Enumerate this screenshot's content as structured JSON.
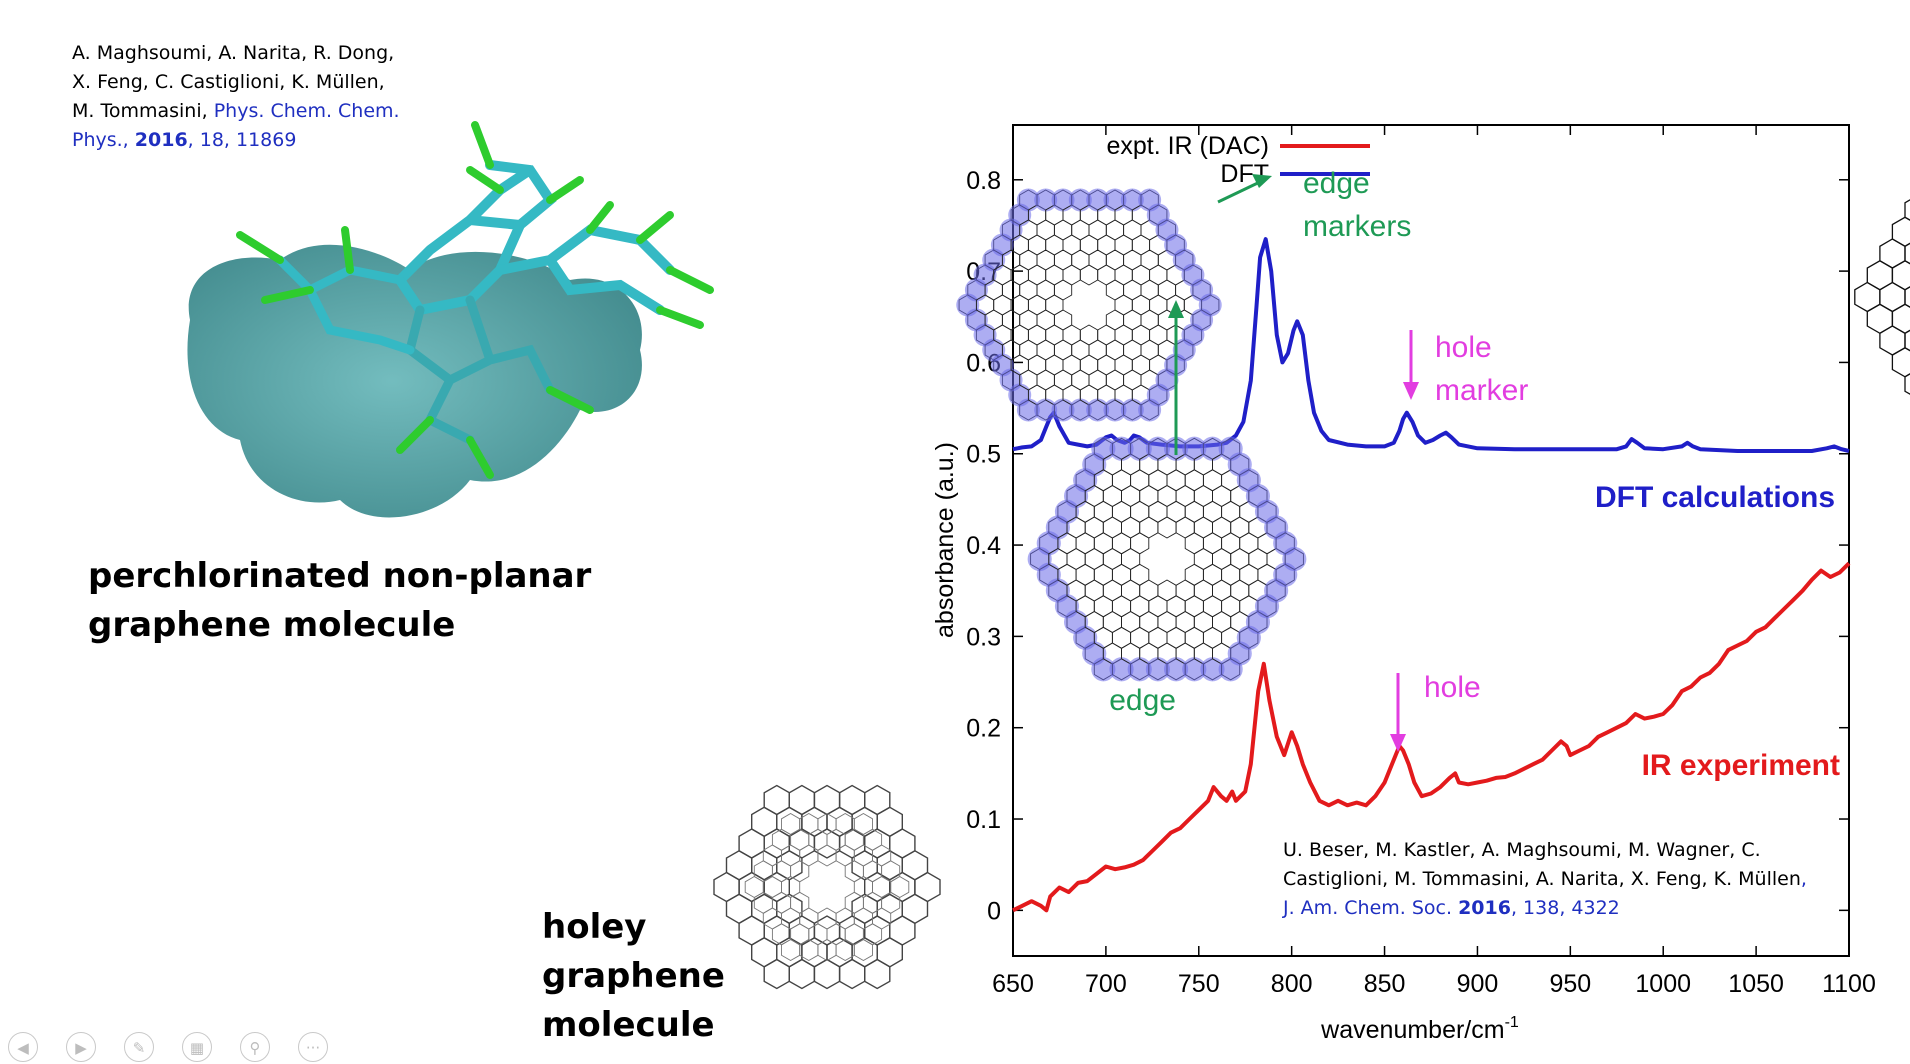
{
  "references": {
    "top": {
      "authors_line1": "A. Maghsoumi, A. Narita, R. Dong,",
      "authors_line2": "X. Feng, C. Castiglioni, K. Müllen,",
      "authors_line3": "M. Tommasini,",
      "journal_a": "Phys. Chem. Chem.",
      "journal_b": "Phys.,",
      "year": "2016",
      "vol_page": ", 18, 11869"
    },
    "bottom": {
      "authors_line1": "U. Beser, M. Kastler, A. Maghsoumi, M. Wagner, C.",
      "authors_line2": "Castiglioni, M. Tommasini, A. Narita, X. Feng, K. Müllen",
      "comma": ",",
      "journal": "J. Am. Chem. Soc.",
      "year": "2016",
      "vol_page": ", 138, 4322"
    }
  },
  "captions": {
    "perchlorinated_line1": "perchlorinated non-planar",
    "perchlorinated_line2": "graphene molecule",
    "holey_line1": "holey",
    "holey_line2": "graphene",
    "holey_line3": "molecule"
  },
  "colors": {
    "experiment": "#e31a1c",
    "dft": "#1f1fc8",
    "edge_annotation": "#1e9a55",
    "hole_annotation": "#e23de0",
    "molecule_teal": "#35b9c4",
    "chlorine_green": "#2ecc2e",
    "surface": "#3d8f92"
  },
  "slide_controls": [
    "prev-icon",
    "next-icon",
    "pen-icon",
    "slides-icon",
    "zoom-icon",
    "more-icon"
  ],
  "chart_data": {
    "type": "line",
    "xlabel": "wavenumber/cm",
    "xlabel_superscript": "-1",
    "ylabel": "absorbance (a.u.)",
    "xlim": [
      650,
      1100
    ],
    "ylim": [
      -0.05,
      0.86
    ],
    "x_ticks": [
      650,
      700,
      750,
      800,
      850,
      900,
      950,
      1000,
      1050,
      1100
    ],
    "y_ticks": [
      0,
      0.1,
      0.2,
      0.3,
      0.4,
      0.5,
      0.6,
      0.7,
      0.8
    ],
    "y_tick_labels": [
      "0",
      "0.1",
      "0.2",
      "0.3",
      "0.4",
      "0.5",
      "0.6",
      "0.7",
      "0.8"
    ],
    "legend": {
      "position": "top-left",
      "entries": [
        "expt. IR (DAC)",
        "DFT"
      ]
    },
    "series": [
      {
        "name": "expt. IR (DAC)",
        "color": "#e31a1c",
        "x": [
          650,
          655,
          660,
          665,
          668,
          670,
          675,
          680,
          685,
          690,
          695,
          700,
          705,
          710,
          715,
          720,
          725,
          730,
          735,
          740,
          745,
          750,
          755,
          758,
          762,
          765,
          768,
          770,
          775,
          778,
          782,
          785,
          788,
          792,
          796,
          800,
          803,
          806,
          810,
          815,
          820,
          825,
          830,
          835,
          840,
          845,
          850,
          855,
          858,
          860,
          863,
          866,
          870,
          875,
          880,
          885,
          888,
          890,
          895,
          900,
          905,
          910,
          915,
          920,
          925,
          930,
          935,
          940,
          945,
          948,
          950,
          955,
          960,
          965,
          970,
          975,
          980,
          985,
          990,
          995,
          1000,
          1005,
          1010,
          1015,
          1020,
          1025,
          1030,
          1035,
          1040,
          1045,
          1050,
          1055,
          1060,
          1065,
          1070,
          1075,
          1080,
          1085,
          1090,
          1095,
          1100
        ],
        "y": [
          0.0,
          0.005,
          0.01,
          0.005,
          0.0,
          0.015,
          0.025,
          0.02,
          0.03,
          0.032,
          0.04,
          0.048,
          0.045,
          0.047,
          0.05,
          0.055,
          0.065,
          0.075,
          0.085,
          0.09,
          0.1,
          0.11,
          0.12,
          0.135,
          0.125,
          0.12,
          0.13,
          0.12,
          0.13,
          0.16,
          0.24,
          0.27,
          0.23,
          0.19,
          0.17,
          0.195,
          0.18,
          0.16,
          0.14,
          0.12,
          0.115,
          0.12,
          0.115,
          0.118,
          0.115,
          0.125,
          0.14,
          0.165,
          0.18,
          0.175,
          0.16,
          0.14,
          0.125,
          0.128,
          0.135,
          0.145,
          0.15,
          0.14,
          0.138,
          0.14,
          0.142,
          0.145,
          0.146,
          0.15,
          0.155,
          0.16,
          0.165,
          0.175,
          0.185,
          0.18,
          0.17,
          0.175,
          0.18,
          0.19,
          0.195,
          0.2,
          0.205,
          0.215,
          0.21,
          0.212,
          0.215,
          0.225,
          0.24,
          0.245,
          0.255,
          0.26,
          0.27,
          0.285,
          0.29,
          0.295,
          0.305,
          0.31,
          0.32,
          0.33,
          0.34,
          0.35,
          0.362,
          0.372,
          0.365,
          0.37,
          0.38
        ]
      },
      {
        "name": "DFT",
        "color": "#1f1fc8",
        "x": [
          650,
          655,
          660,
          665,
          668,
          670,
          672,
          675,
          680,
          685,
          690,
          695,
          700,
          703,
          706,
          710,
          713,
          715,
          718,
          722,
          730,
          740,
          750,
          760,
          765,
          770,
          774,
          778,
          781,
          783,
          786,
          789,
          792,
          795,
          798,
          801,
          803,
          806,
          809,
          812,
          816,
          820,
          830,
          840,
          850,
          855,
          858,
          860,
          862,
          865,
          868,
          872,
          876,
          880,
          883,
          886,
          890,
          900,
          920,
          940,
          960,
          975,
          980,
          983,
          986,
          990,
          1000,
          1010,
          1013,
          1016,
          1020,
          1040,
          1060,
          1080,
          1088,
          1092,
          1096,
          1100
        ],
        "y": [
          0.505,
          0.507,
          0.508,
          0.515,
          0.53,
          0.54,
          0.545,
          0.53,
          0.512,
          0.51,
          0.508,
          0.51,
          0.518,
          0.52,
          0.515,
          0.512,
          0.515,
          0.52,
          0.518,
          0.512,
          0.51,
          0.508,
          0.508,
          0.51,
          0.512,
          0.52,
          0.535,
          0.58,
          0.66,
          0.715,
          0.735,
          0.7,
          0.63,
          0.6,
          0.61,
          0.635,
          0.645,
          0.63,
          0.58,
          0.545,
          0.525,
          0.515,
          0.51,
          0.508,
          0.508,
          0.512,
          0.525,
          0.538,
          0.545,
          0.535,
          0.52,
          0.512,
          0.515,
          0.52,
          0.523,
          0.518,
          0.51,
          0.506,
          0.505,
          0.505,
          0.505,
          0.505,
          0.508,
          0.516,
          0.512,
          0.506,
          0.505,
          0.508,
          0.512,
          0.508,
          0.505,
          0.503,
          0.503,
          0.503,
          0.506,
          0.508,
          0.505,
          0.503
        ]
      }
    ],
    "annotations": [
      {
        "text": "edge",
        "color": "#1e9a55"
      },
      {
        "text": "markers",
        "color": "#1e9a55"
      },
      {
        "text": "hole",
        "color": "#e23de0"
      },
      {
        "text": "marker",
        "color": "#e23de0"
      },
      {
        "text": "edge",
        "color": "#1e9a55"
      },
      {
        "text": "hole",
        "color": "#e23de0"
      },
      {
        "text": "DFT calculations",
        "color": "#1f1fc8"
      },
      {
        "text": "IR experiment",
        "color": "#e31a1c"
      }
    ]
  }
}
